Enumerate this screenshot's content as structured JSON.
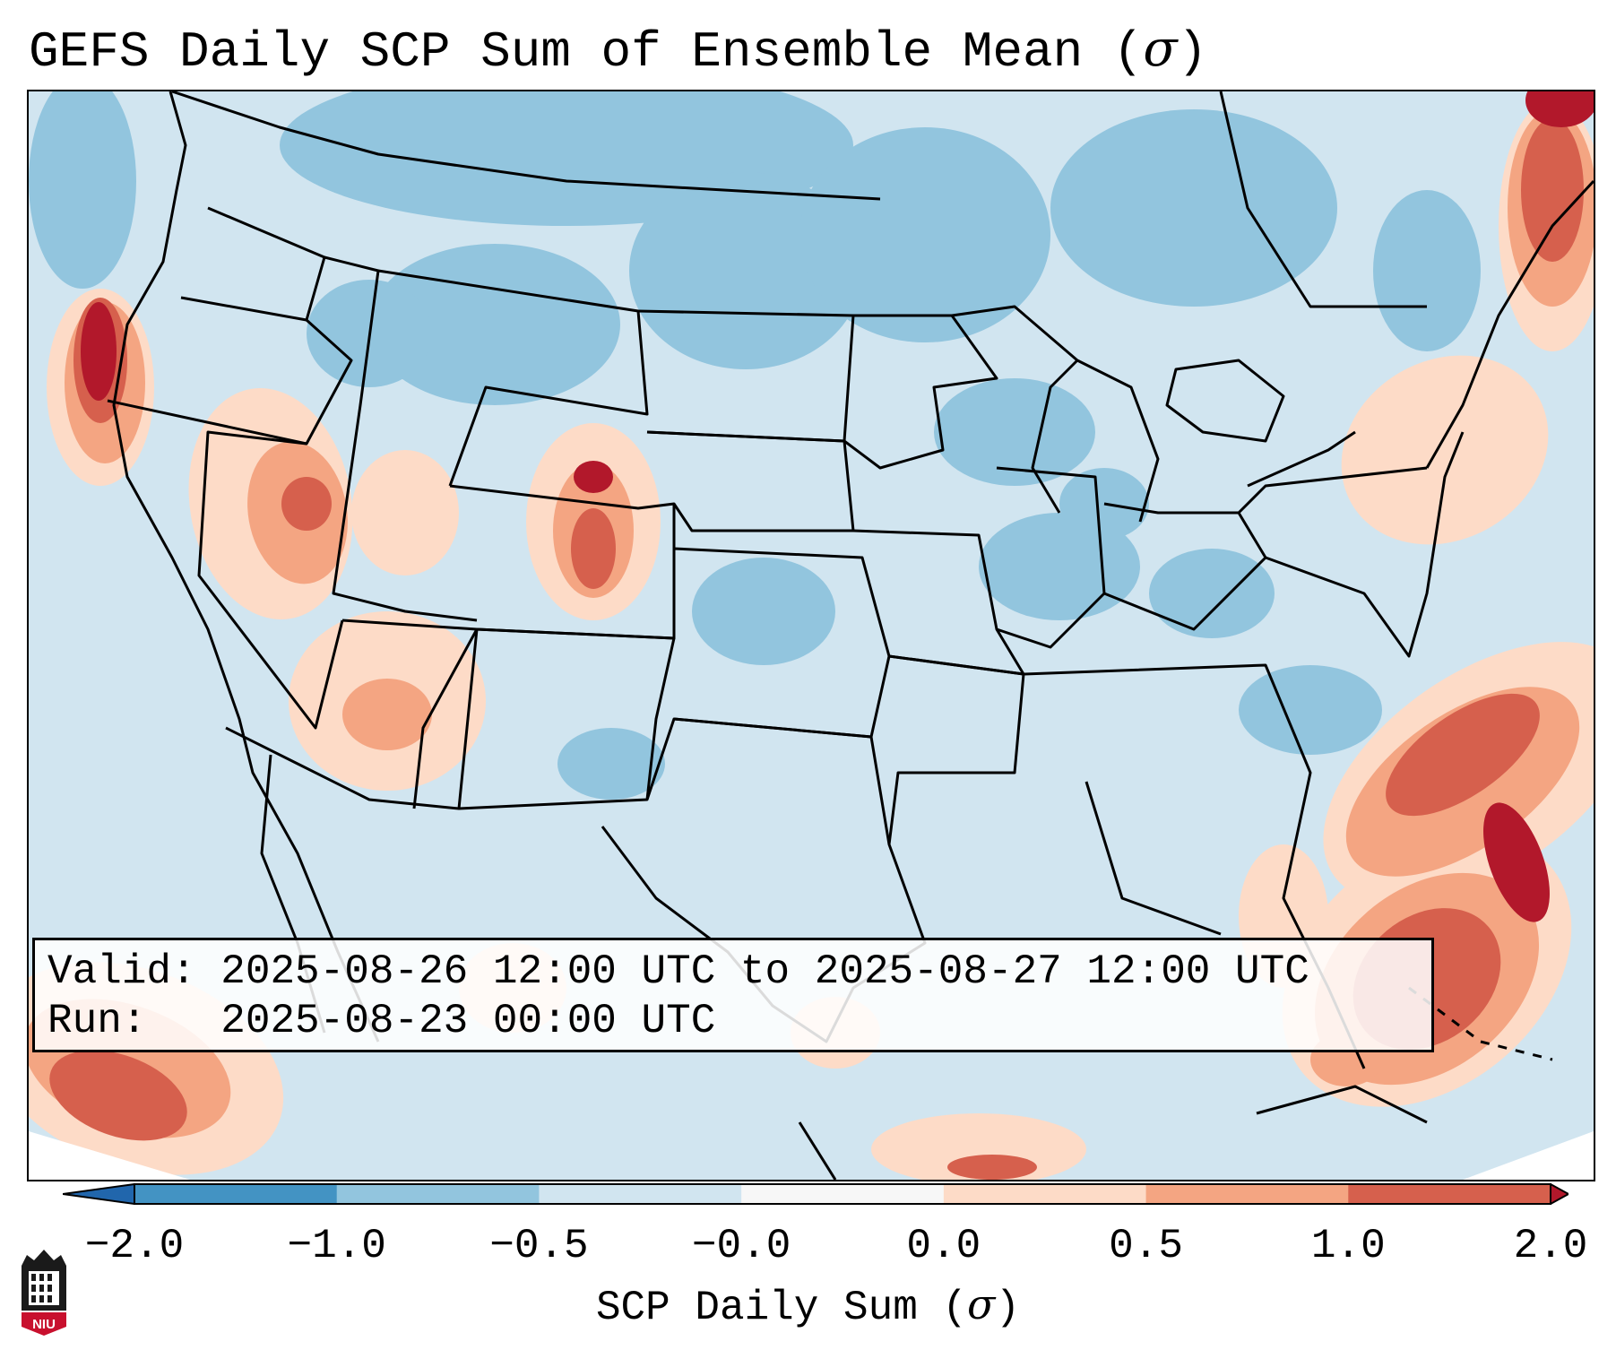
{
  "title": "GEFS Daily SCP Sum of Ensemble Mean (",
  "title_sigma": "σ",
  "title_close": ")",
  "valid_line": "Valid: 2025-08-26 12:00 UTC to 2025-08-27 12:00 UTC",
  "run_line": "Run:   2025-08-23 00:00 UTC",
  "colorbar": {
    "label": "SCP Daily Sum (",
    "label_sigma": "σ",
    "label_close": ")",
    "ticks": [
      "−2.0",
      "−1.0",
      "−0.5",
      "−0.0",
      "0.0",
      "0.5",
      "1.0",
      "2.0"
    ],
    "colors": [
      "#4393c3",
      "#92c5de",
      "#d1e5f0",
      "#f7f7f7",
      "#fddbc7",
      "#f4a582",
      "#d6604d"
    ],
    "under_color": "#2166ac",
    "over_color": "#b2182b"
  },
  "logo_text": "NIU",
  "chart_data": {
    "type": "heatmap",
    "variable": "SCP Daily Sum (σ)",
    "levels": [
      -2.0,
      -1.0,
      -0.5,
      -0.0,
      0.0,
      0.5,
      1.0,
      2.0
    ],
    "region": "CONUS",
    "highlights": [
      {
        "area": "Oregon/Northern California coast",
        "max_sigma": 2.0
      },
      {
        "area": "Nevada / Utah",
        "max_sigma": 1.0
      },
      {
        "area": "NE Colorado / SE Wyoming",
        "max_sigma": 2.0
      },
      {
        "area": "Arizona",
        "max_sigma": 1.0
      },
      {
        "area": "Western Atlantic off Carolinas",
        "max_sigma": 2.0
      },
      {
        "area": "Atlantic east of Florida / Bahamas",
        "max_sigma": 2.0
      },
      {
        "area": "Maine / Nova Scotia",
        "max_sigma": 2.0
      },
      {
        "area": "Eastern Pacific off Baja",
        "max_sigma": 1.0
      }
    ]
  },
  "colors": {
    "background_neutral": "#d1e5f0",
    "state_lines": "#000000"
  }
}
